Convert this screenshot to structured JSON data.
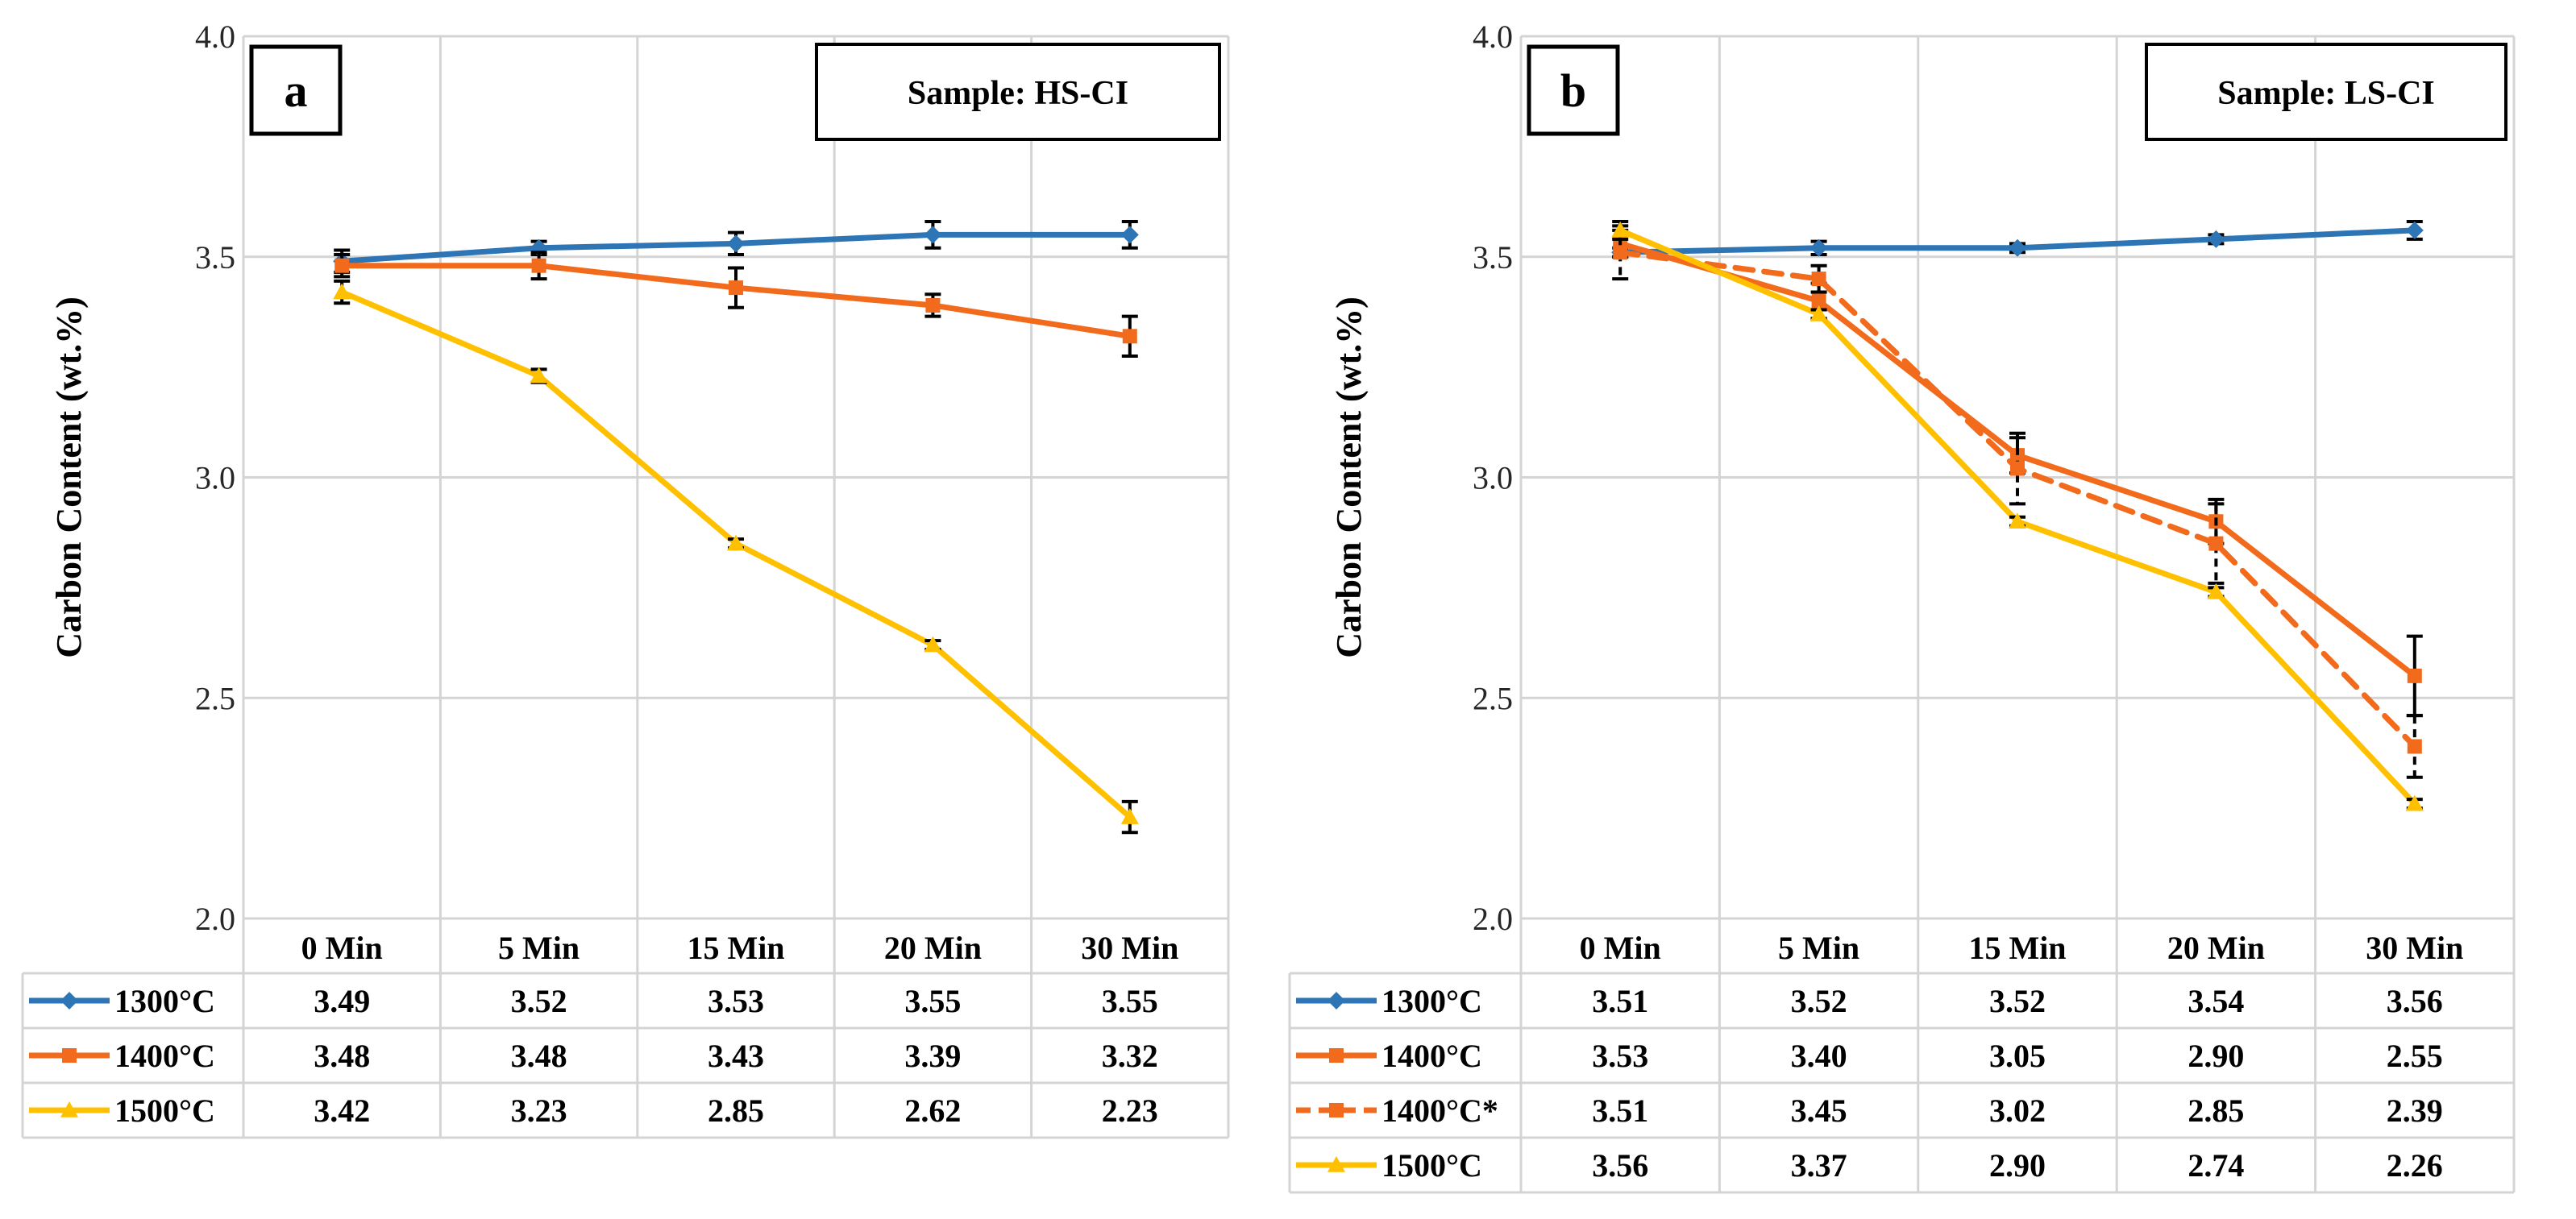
{
  "figure": {
    "ytick_labels": [
      "2.0",
      "2.5",
      "3.0",
      "3.5",
      "4.0"
    ]
  },
  "colors": {
    "1300": "#2e75b6",
    "1400": "#f26b1d",
    "1500": "#ffc000",
    "error_bar": "#000000",
    "grid": "#d4d4d4"
  },
  "chart_data": [
    {
      "type": "line",
      "panel": "a",
      "sample_label": "Sample: HS-CI",
      "ylabel": "Carbon Content  (wt.%)",
      "ylim": [
        2.0,
        4.0
      ],
      "yticks": [
        2.0,
        2.5,
        3.0,
        3.5,
        4.0
      ],
      "categories": [
        "0 Min",
        "5 Min",
        "15 Min",
        "20 Min",
        "30 Min"
      ],
      "grid": true,
      "legend": "data-table",
      "series": [
        {
          "name": "1300°C",
          "color_key": "1300",
          "dashed": false,
          "marker": "diamond",
          "values": [
            3.49,
            3.52,
            3.53,
            3.55,
            3.55
          ],
          "labels": [
            "3.49",
            "3.52",
            "3.53",
            "3.55",
            "3.55"
          ],
          "errors": [
            0.025,
            0.015,
            0.025,
            0.03,
            0.03
          ]
        },
        {
          "name": "1400°C",
          "color_key": "1400",
          "dashed": false,
          "marker": "square",
          "values": [
            3.48,
            3.48,
            3.43,
            3.39,
            3.32
          ],
          "labels": [
            "3.48",
            "3.48",
            "3.43",
            "3.39",
            "3.32"
          ],
          "errors": [
            0.025,
            0.03,
            0.045,
            0.025,
            0.045
          ]
        },
        {
          "name": "1500°C",
          "color_key": "1500",
          "dashed": false,
          "marker": "triangle",
          "values": [
            3.42,
            3.23,
            2.85,
            2.62,
            2.23
          ],
          "labels": [
            "3.42",
            "3.23",
            "2.85",
            "2.62",
            "2.23"
          ],
          "errors": [
            0.025,
            0.015,
            0.01,
            0.01,
            0.035
          ]
        }
      ]
    },
    {
      "type": "line",
      "panel": "b",
      "sample_label": "Sample: LS-CI",
      "ylabel": "Carbon Content  (wt.%)",
      "ylim": [
        2.0,
        4.0
      ],
      "yticks": [
        2.0,
        2.5,
        3.0,
        3.5,
        4.0
      ],
      "categories": [
        "0 Min",
        "5 Min",
        "15 Min",
        "20 Min",
        "30 Min"
      ],
      "grid": true,
      "legend": "data-table",
      "series": [
        {
          "name": "1300°C",
          "color_key": "1300",
          "dashed": false,
          "marker": "diamond",
          "values": [
            3.51,
            3.52,
            3.52,
            3.54,
            3.56
          ],
          "labels": [
            "3.51",
            "3.52",
            "3.52",
            "3.54",
            "3.56"
          ],
          "errors": [
            0.01,
            0.015,
            0.01,
            0.01,
            0.02
          ]
        },
        {
          "name": "1400°C",
          "color_key": "1400",
          "dashed": false,
          "marker": "square",
          "values": [
            3.53,
            3.4,
            3.05,
            2.9,
            2.55
          ],
          "labels": [
            "3.53",
            "3.40",
            "3.05",
            "2.90",
            "2.55"
          ],
          "errors": [
            0.03,
            0.04,
            0.04,
            0.05,
            0.09
          ]
        },
        {
          "name": "1400°C*",
          "color_key": "1400",
          "dashed": true,
          "marker": "square",
          "values": [
            3.51,
            3.45,
            3.02,
            2.85,
            2.39
          ],
          "labels": [
            "3.51",
            "3.45",
            "3.02",
            "2.85",
            "2.39"
          ],
          "errors": [
            0.06,
            0.03,
            0.08,
            0.09,
            0.07
          ]
        },
        {
          "name": "1500°C",
          "color_key": "1500",
          "dashed": false,
          "marker": "triangle",
          "values": [
            3.56,
            3.37,
            2.9,
            2.74,
            2.26
          ],
          "labels": [
            "3.56",
            "3.37",
            "2.90",
            "2.74",
            "2.26"
          ],
          "errors": [
            0.02,
            0.01,
            0.01,
            0.01,
            0.01
          ]
        }
      ]
    }
  ]
}
